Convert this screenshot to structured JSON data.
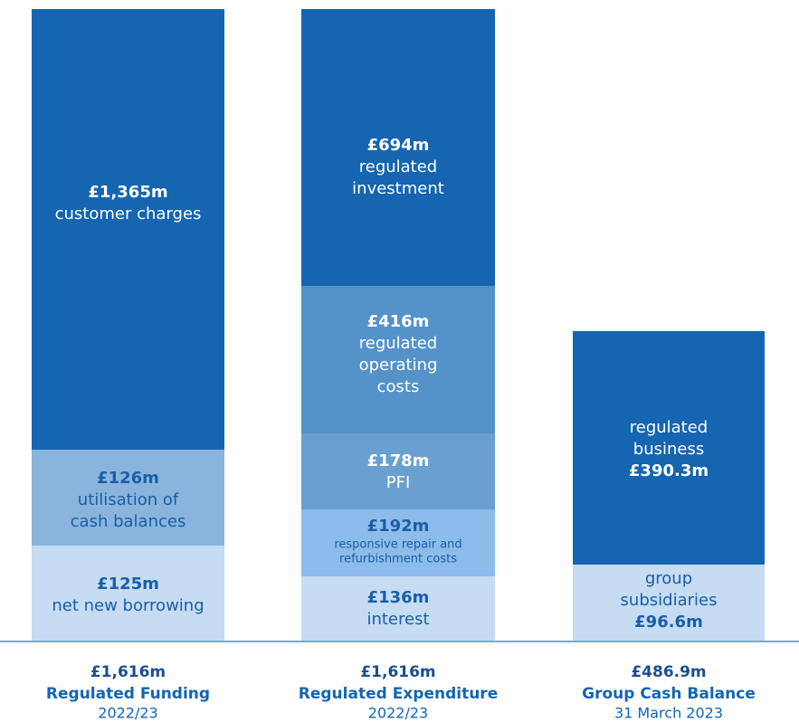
{
  "columns": [
    {
      "total": "£1,616m",
      "name": "Regulated Funding",
      "period": "2022/23",
      "segments": [
        {
          "amount": "£1,365m",
          "label": [
            "customer charges"
          ]
        },
        {
          "amount": "£126m",
          "label": [
            "utilisation of",
            "cash balances"
          ]
        },
        {
          "amount": "£125m",
          "label": [
            "net new borrowing"
          ]
        }
      ]
    },
    {
      "total": "£1,616m",
      "name": "Regulated Expenditure",
      "period": "2022/23",
      "segments": [
        {
          "amount": "£694m",
          "label": [
            "regulated",
            "investment"
          ]
        },
        {
          "amount": "£416m",
          "label": [
            "regulated",
            "operating",
            "costs"
          ]
        },
        {
          "amount": "£178m",
          "label": [
            "PFI"
          ]
        },
        {
          "amount": "£192m",
          "label": [
            "responsive repair and",
            "refurbishment costs"
          ]
        },
        {
          "amount": "£136m",
          "label": [
            "interest"
          ]
        }
      ]
    },
    {
      "total": "£486.9m",
      "name": "Group Cash Balance",
      "period": "31 March 2023",
      "segments": [
        {
          "amount": "£390.3m",
          "label": [
            "regulated",
            "business"
          ]
        },
        {
          "amount": "£96.6m",
          "label": [
            "group",
            "subsidiaries"
          ]
        }
      ]
    }
  ]
}
